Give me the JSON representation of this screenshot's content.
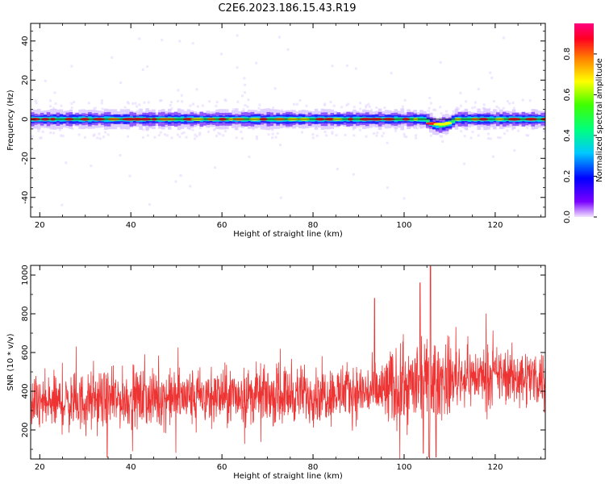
{
  "title": "C2E6.2023.186.15.43.R19",
  "colors": {
    "snr_line": "#ee3333",
    "background": "#ffffff",
    "axis": "#000000"
  },
  "chart_data": [
    {
      "type": "heatmap",
      "xlabel": "Height of straight line (km)",
      "ylabel": "Frequency (Hz)",
      "xlim": [
        18,
        131
      ],
      "ylim": [
        -50,
        49
      ],
      "xticks": [
        "20",
        "40",
        "60",
        "80",
        "100",
        "120"
      ],
      "yticks": [
        "40",
        "20",
        "0",
        "-20",
        "-40"
      ],
      "colorbar": {
        "label": "Normalized spectral amplitude",
        "range": [
          0.0,
          0.95
        ],
        "ticks": [
          "0.0",
          "0.2",
          "0.4",
          "0.6",
          "0.8"
        ],
        "colormap": "gist_rainbow_r"
      },
      "band_center_hz": 0,
      "band_halfwidth_hz": 3,
      "band_deviation_near_km": [
        104,
        111
      ],
      "band_deviation_hz": -4
    },
    {
      "type": "line",
      "xlabel": "Height of straight line (km)",
      "ylabel": "SNR (10 * v/v)",
      "xlim": [
        18,
        131
      ],
      "ylim": [
        50,
        1050
      ],
      "xticks": [
        "20",
        "40",
        "60",
        "80",
        "100",
        "120"
      ],
      "yticks": [
        "200",
        "400",
        "600",
        "800",
        "1000"
      ],
      "baseline_by_height": [
        [
          18,
          330
        ],
        [
          40,
          360
        ],
        [
          60,
          375
        ],
        [
          80,
          385
        ],
        [
          95,
          400
        ],
        [
          100,
          420
        ],
        [
          110,
          470
        ],
        [
          120,
          480
        ],
        [
          131,
          470
        ]
      ],
      "noise_amplitude": 160,
      "spikes": [
        [
          93.5,
          880
        ],
        [
          103.5,
          960
        ],
        [
          105.8,
          1045
        ],
        [
          105.5,
          60
        ],
        [
          107,
          60
        ],
        [
          104.2,
          80
        ],
        [
          34.8,
          60
        ]
      ]
    }
  ]
}
